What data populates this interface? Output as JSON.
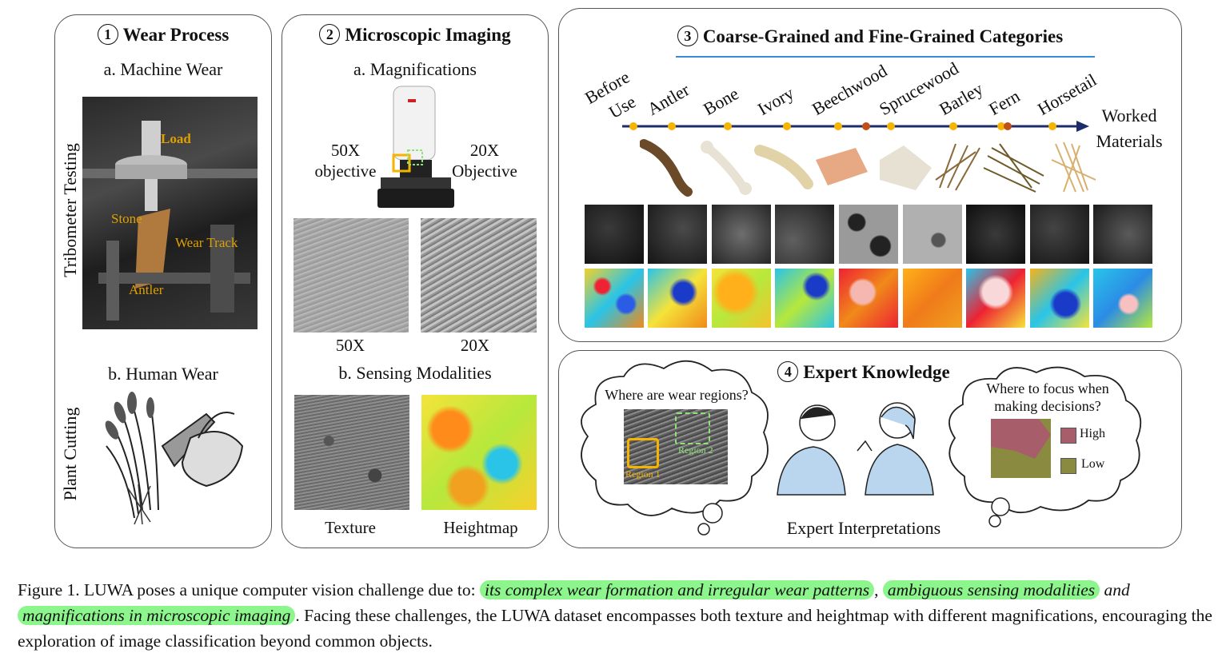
{
  "panel1": {
    "title_num": "1",
    "title": "Wear Process",
    "sub_a": "a. Machine Wear",
    "sub_b": "b. Human Wear",
    "side_a": "Tribometer Testing",
    "side_b": "Plant Cutting",
    "photo_labels": {
      "load": "Load",
      "stone": "Stone",
      "wear_track": "Wear Track",
      "antler": "Antler"
    }
  },
  "panel2": {
    "title_num": "2",
    "title": "Microscopic Imaging",
    "sub_a": "a. Magnifications",
    "sub_b": "b. Sensing Modalities",
    "obj_left_1": "50X",
    "obj_left_2": "objective",
    "obj_right_1": "20X",
    "obj_right_2": "Objective",
    "mag_left": "50X",
    "mag_right": "20X",
    "mod_left": "Texture",
    "mod_right": "Heightmap"
  },
  "panel3": {
    "title_num": "3",
    "title": "Coarse-Grained and Fine-Grained Categories",
    "before_use_1": "Before",
    "before_use_2": "Use",
    "materials": [
      "Antler",
      "Bone",
      "Ivory",
      "Beechwood",
      "Sprucewood",
      "Barley",
      "Fern",
      "Horsetail"
    ],
    "worked_1": "Worked",
    "worked_2": "Materials"
  },
  "panel4": {
    "title_num": "4",
    "title": "Expert Knowledge",
    "q_left": "Where are wear regions?",
    "region1": "Region 1",
    "region2": "Region 2",
    "q_right_1": "Where to focus when",
    "q_right_2": "making decisions?",
    "legend_high": "High",
    "legend_low": "Low",
    "caption": "Expert Interpretations",
    "colors": {
      "high": "#a85e6a",
      "low": "#8a8a40"
    }
  },
  "figure_caption": {
    "prefix": "Figure 1.  LUWA poses a unique computer vision challenge due to: ",
    "hl1": "its complex wear formation and irregular wear patterns",
    "sep1": ", ",
    "hl2": "ambiguous sensing modalities",
    "sep2": " and ",
    "hl3": "magnifications in microscopic imaging",
    "rest": ". Facing these challenges, the LUWA dataset encompasses both texture and heightmap with different magnifications, encouraging the exploration of image classification beyond common objects."
  }
}
